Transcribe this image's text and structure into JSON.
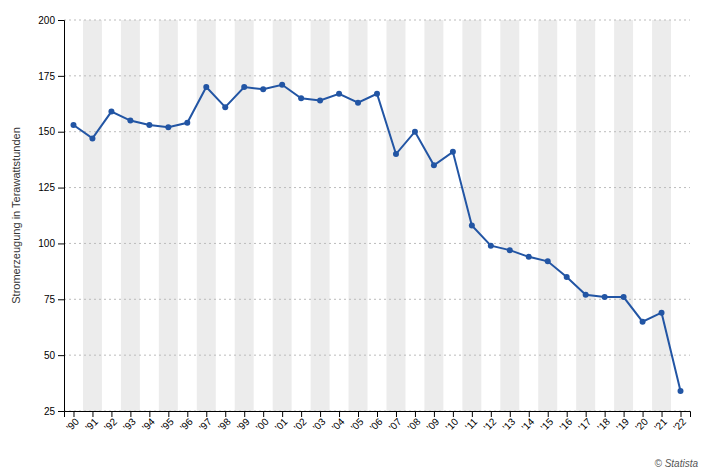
{
  "chart_data": {
    "type": "line",
    "categories": [
      "'90",
      "'91",
      "'92",
      "'93",
      "'94",
      "'95",
      "'96",
      "'97",
      "'98",
      "'99",
      "'00",
      "'01",
      "'02",
      "'03",
      "'04",
      "'05",
      "'06",
      "'07",
      "'08",
      "'09",
      "'10",
      "'11",
      "'12",
      "'13",
      "'14",
      "'15",
      "'16",
      "'17",
      "'18",
      "'19",
      "'20",
      "'21",
      "'22"
    ],
    "values": [
      153,
      147,
      159,
      155,
      153,
      152,
      154,
      170,
      161,
      170,
      169,
      171,
      165,
      164,
      167,
      163,
      167,
      140,
      150,
      135,
      141,
      108,
      99,
      97,
      94,
      92,
      85,
      77,
      76,
      76,
      65,
      69,
      34
    ],
    "color": "#2255a4",
    "marker": "circle",
    "y_label": "Stromerzeugung in Terawattstunden",
    "ylim": [
      25,
      200
    ],
    "yticks": [
      25,
      50,
      75,
      100,
      125,
      150,
      175,
      200
    ],
    "grid": true,
    "annotations": [
      "© Statista"
    ]
  }
}
